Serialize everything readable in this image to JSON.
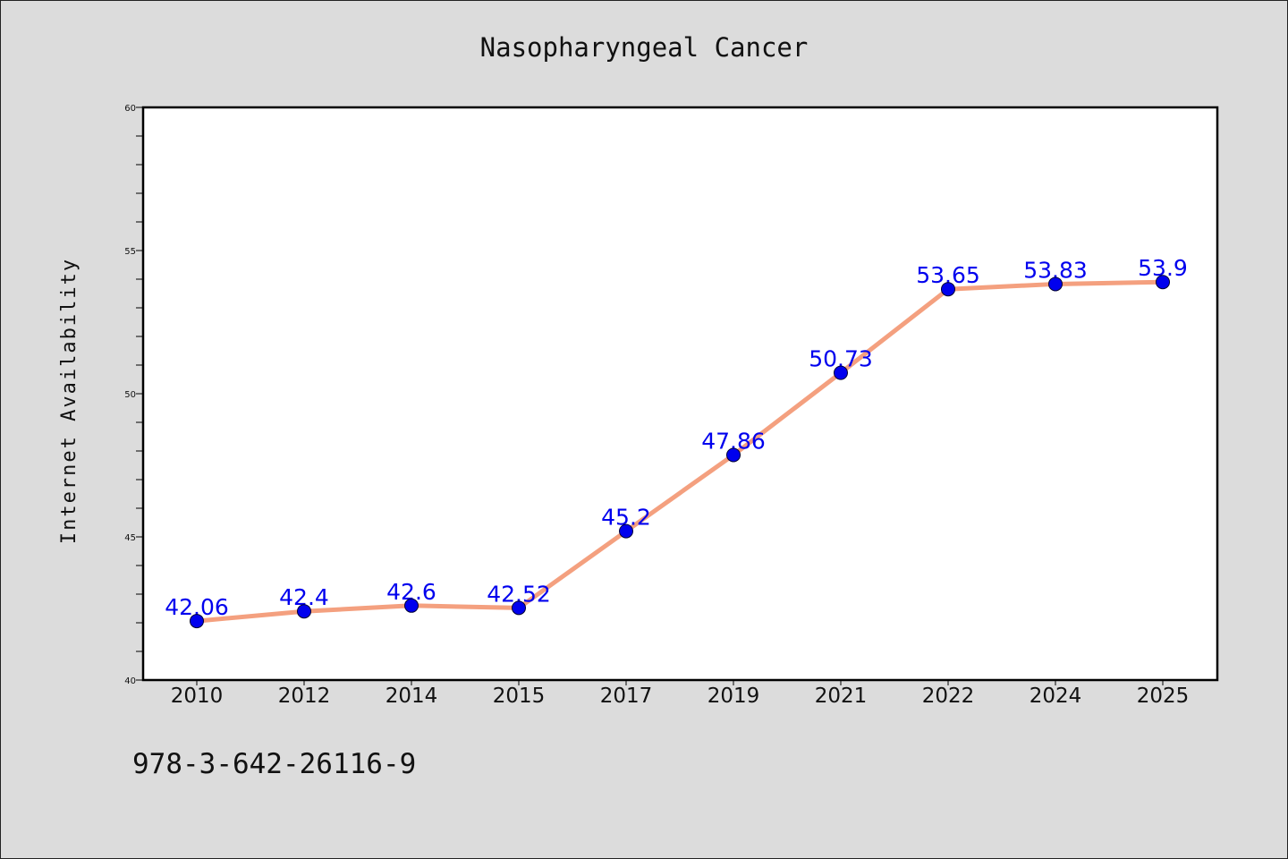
{
  "chart_data": {
    "type": "line",
    "title": "Nasopharyngeal Cancer",
    "xlabel": "",
    "ylabel": "Internet Availability",
    "categories": [
      "2010",
      "2012",
      "2014",
      "2015",
      "2017",
      "2019",
      "2021",
      "2022",
      "2024",
      "2025"
    ],
    "values": [
      42.06,
      42.4,
      42.6,
      42.52,
      45.2,
      47.86,
      50.73,
      53.65,
      53.83,
      53.9
    ],
    "data_labels": [
      "42.06",
      "42.4",
      "42.6",
      "42.52",
      "45.2",
      "47.86",
      "50.73",
      "53.65",
      "53.83",
      "53.9"
    ],
    "ylim": [
      40,
      60
    ],
    "yticks": [
      "40",
      "45",
      "50",
      "55",
      "60"
    ],
    "grid": false,
    "line_color": "#f4a07f",
    "marker_color": "#0000ee",
    "label_color": "#0000ee"
  },
  "footnote": "978-3-642-26116-9"
}
